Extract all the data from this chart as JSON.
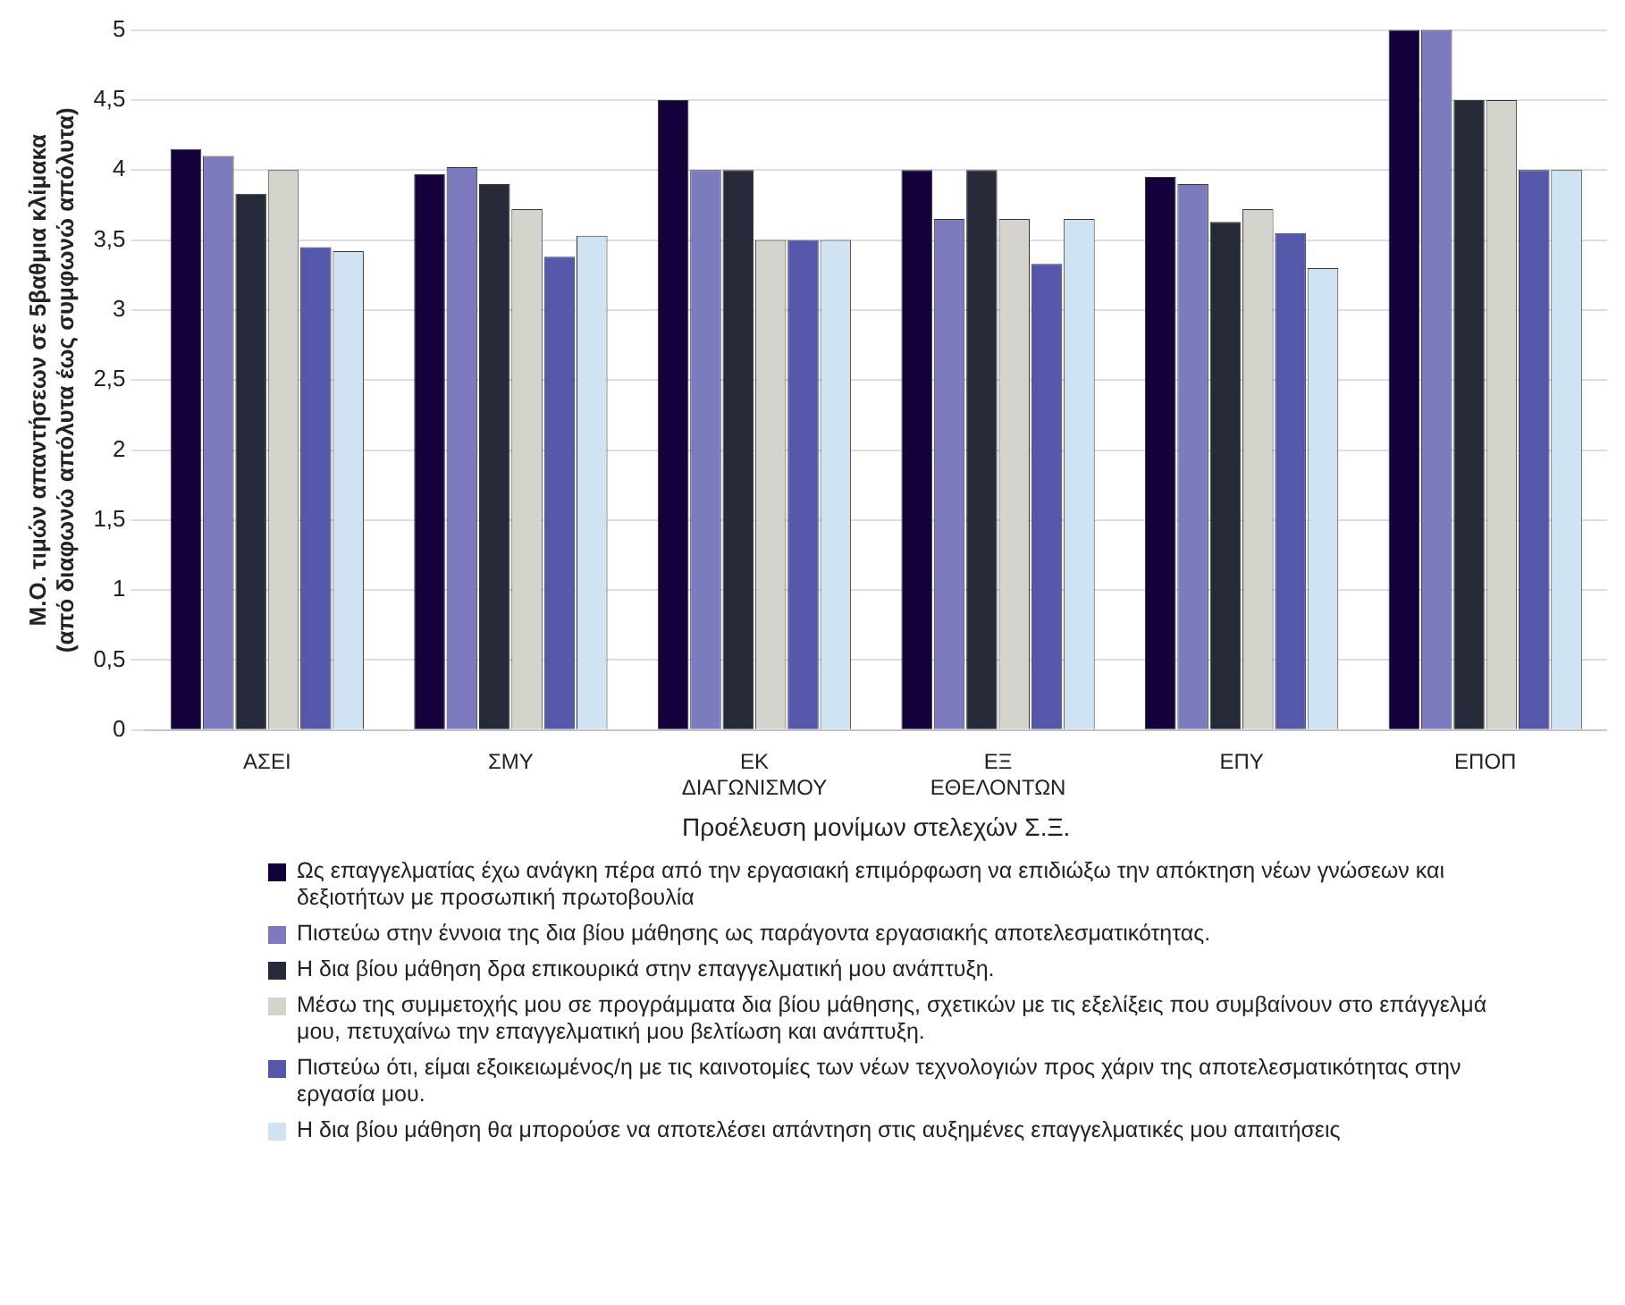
{
  "chart_data": {
    "type": "bar",
    "xlabel": "Προέλευση μονίμων στελεχών Σ.Ξ.",
    "ylabel": "Μ.Ο. τιμών απαντήσεων σε 5βαθμια κλίμακα\n(από διαφωνώ απόλυτα έως συμφωνώ απόλυτα)",
    "categories": [
      "ΑΣΕΙ",
      "ΣΜΥ",
      "ΕΚ\nΔΙΑΓΩΝΙΣΜΟΥ",
      "ΕΞ\nΕΘΕΛΟΝΤΩΝ",
      "ΕΠΥ",
      "ΕΠΟΠ"
    ],
    "series": [
      {
        "name": "Ως επαγγελματίας έχω ανάγκη πέρα από την εργασιακή επιμόρφωση να επιδιώξω την απόκτηση νέων γνώσεων και δεξιοτήτων με προσωπική πρωτοβουλία",
        "color": "#14003a",
        "values": [
          4.15,
          3.97,
          4.5,
          4.0,
          3.95,
          5.0
        ]
      },
      {
        "name": "Πιστεύω στην έννοια της δια βίου μάθησης ως παράγοντα εργασιακής αποτελεσματικότητας.",
        "color": "#7b7bbd",
        "values": [
          4.1,
          4.02,
          4.0,
          3.65,
          3.9,
          5.0
        ]
      },
      {
        "name": "Η δια βίου μάθηση δρα επικουρικά στην επαγγελματική μου ανάπτυξη.",
        "color": "#262a38",
        "values": [
          3.83,
          3.9,
          4.0,
          4.0,
          3.63,
          4.5
        ]
      },
      {
        "name": "Μέσω της συμμετοχής μου σε προγράμματα δια βίου  μάθησης, σχετικών με τις εξελίξεις που συμβαίνουν στο επάγγελμά μου, πετυχαίνω την επαγγελματική μου βελτίωση και ανάπτυξη.",
        "color": "#d4d4cc",
        "values": [
          4.0,
          3.72,
          3.5,
          3.65,
          3.72,
          4.5
        ]
      },
      {
        "name": "Πιστεύω ότι, είμαι εξοικειωμένος/η  με τις καινοτομίες των νέων τεχνολογιών προς χάριν της αποτελεσματικότητας στην εργασία μου.",
        "color": "#5558aa",
        "values": [
          3.45,
          3.38,
          3.5,
          3.33,
          3.55,
          4.0
        ]
      },
      {
        "name": "Η δια βίου μάθηση θα μπορούσε να αποτελέσει απάντηση στις αυξημένες επαγγελματικές μου απαιτήσεις",
        "color": "#cfe3f2",
        "values": [
          3.42,
          3.53,
          3.5,
          3.65,
          3.3,
          4.0
        ]
      }
    ],
    "ylim": [
      0,
      5
    ],
    "yticks": [
      {
        "value": 0,
        "label": "0"
      },
      {
        "value": 0.5,
        "label": "0,5"
      },
      {
        "value": 1,
        "label": "1"
      },
      {
        "value": 1.5,
        "label": "1,5"
      },
      {
        "value": 2,
        "label": "2"
      },
      {
        "value": 2.5,
        "label": "2,5"
      },
      {
        "value": 3,
        "label": "3"
      },
      {
        "value": 3.5,
        "label": "3,5"
      },
      {
        "value": 4,
        "label": "4"
      },
      {
        "value": 4.5,
        "label": "4,5"
      },
      {
        "value": 5,
        "label": "5"
      }
    ],
    "grid": "y",
    "legend": "bottom"
  }
}
